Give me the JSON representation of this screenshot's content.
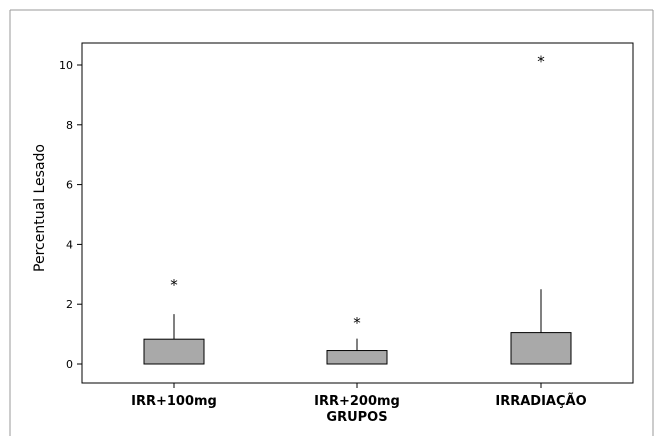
{
  "chart_data": {
    "type": "boxplot",
    "title": "",
    "xlabel": "GRUPOS",
    "ylabel": "Percentual Lesado",
    "ylim": [
      -0.7,
      10.8
    ],
    "yticks": [
      0,
      2,
      4,
      6,
      8,
      10
    ],
    "ytick_labels": [
      "0",
      "2",
      "4",
      "6",
      "8",
      "10"
    ],
    "grid": false,
    "legend": "none",
    "box_color": "#a9a9a9",
    "outlier_marker": "*",
    "categories": [
      "IRR+100mg",
      "IRR+200mg",
      "IRRADIAÇÃO"
    ],
    "boxes": [
      {
        "category": "IRR+100mg",
        "min": 0,
        "q1": 0,
        "median": 0,
        "q3": 0.83,
        "whisker_high": 1.67,
        "outliers": [
          2.68
        ]
      },
      {
        "category": "IRR+200mg",
        "min": 0,
        "q1": 0,
        "median": 0,
        "q3": 0.45,
        "whisker_high": 0.85,
        "outliers": [
          1.4
        ]
      },
      {
        "category": "IRRADIAÇÃO",
        "min": 0,
        "q1": 0,
        "median": 0,
        "q3": 1.05,
        "whisker_high": 2.5,
        "outliers": [
          10.15
        ]
      }
    ]
  }
}
